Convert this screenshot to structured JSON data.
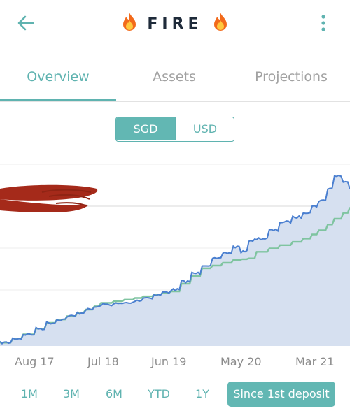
{
  "appbar": {
    "title": "FIRE",
    "back_icon": "arrow-left-icon",
    "menu_icon": "more-vertical-icon",
    "title_icon": "fire-icon"
  },
  "tabs": [
    {
      "label": "Overview",
      "active": true
    },
    {
      "label": "Assets",
      "active": false
    },
    {
      "label": "Projections",
      "active": false
    }
  ],
  "currency": {
    "options": [
      "SGD",
      "USD"
    ],
    "selected": "SGD"
  },
  "ranges": {
    "options": [
      "1M",
      "3M",
      "6M",
      "YTD",
      "1Y",
      "Since 1st deposit"
    ],
    "selected": "Since 1st deposit"
  },
  "colors": {
    "accent": "#5fb3b0",
    "value_line": "#4a7fd0",
    "deposit_line": "#7fc4a0",
    "area_fill": "#d6e0f0",
    "redaction": "#a52a1a"
  },
  "chart_data": {
    "type": "area",
    "x_ticks": [
      "Aug 17",
      "Jul 18",
      "Jun 19",
      "May 20",
      "Mar 21"
    ],
    "series": [
      {
        "key": "value",
        "x": [
          "Aug 17",
          "Nov 17",
          "Feb 18",
          "Jul 18",
          "Sep 18",
          "Dec 18",
          "Jun 19",
          "Oct 19",
          "Feb 20",
          "Mar 20",
          "Apr 20",
          "May 20",
          "Aug 20",
          "Nov 20",
          "Jan 21",
          "Mar 21",
          "May 21"
        ],
        "y": [
          2,
          7,
          14,
          22,
          25,
          26,
          34,
          49,
          60,
          57,
          64,
          65,
          75,
          81,
          88,
          103,
          95
        ]
      },
      {
        "key": "deposits",
        "x": [
          "Aug 17",
          "Nov 17",
          "Feb 18",
          "Jul 18",
          "Sep 18",
          "Dec 18",
          "Jun 19",
          "Oct 19",
          "Feb 20",
          "Apr 20",
          "May 20",
          "Aug 20",
          "Nov 20",
          "Jan 21",
          "Mar 21",
          "May 21"
        ],
        "y": [
          2,
          7,
          14,
          22,
          26,
          28,
          33,
          47,
          52,
          53,
          57,
          61,
          65,
          70,
          77,
          84
        ]
      }
    ],
    "ylim": [
      0,
      110
    ],
    "grid": "horizontal"
  }
}
